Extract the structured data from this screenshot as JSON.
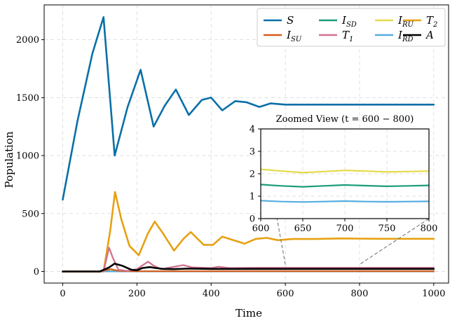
{
  "chart_data": [
    {
      "type": "line",
      "title": "",
      "xlabel": "Time",
      "ylabel": "Population",
      "xlim": [
        -50,
        1040
      ],
      "ylim": [
        -100,
        2300
      ],
      "xticks": [
        0,
        200,
        400,
        600,
        800,
        1000
      ],
      "yticks": [
        0,
        500,
        1000,
        1500,
        2000
      ],
      "grid": true,
      "legend_position": "top-right",
      "series": [
        {
          "name": "S",
          "label": "S",
          "color": "#0a6fa8",
          "x": [
            0,
            40,
            80,
            110,
            140,
            175,
            210,
            245,
            275,
            305,
            340,
            375,
            400,
            430,
            465,
            495,
            530,
            560,
            600,
            640,
            680,
            720,
            760,
            800,
            850,
            900,
            950,
            1000
          ],
          "y": [
            620,
            1300,
            1880,
            2195,
            1000,
            1420,
            1740,
            1250,
            1430,
            1570,
            1350,
            1480,
            1500,
            1390,
            1470,
            1460,
            1420,
            1450,
            1440,
            1440,
            1440,
            1440,
            1440,
            1440,
            1440,
            1440,
            1440,
            1440
          ]
        },
        {
          "name": "I_SU",
          "label": "I",
          "sub": "SU",
          "color": "#d35f1f",
          "x": [
            0,
            100,
            130,
            145,
            170,
            1000
          ],
          "y": [
            0,
            0,
            20,
            8,
            2,
            2
          ]
        },
        {
          "name": "I_SD",
          "label": "I",
          "sub": "SD",
          "color": "#1a9c7b",
          "x": [
            0,
            1000
          ],
          "y": [
            2,
            2
          ]
        },
        {
          "name": "T_1",
          "label": "T",
          "sub": "1",
          "color": "#d0728e",
          "x": [
            0,
            110,
            125,
            135,
            150,
            175,
            200,
            230,
            245,
            265,
            300,
            325,
            350,
            400,
            420,
            450,
            520,
            1000
          ],
          "y": [
            0,
            0,
            205,
            120,
            15,
            5,
            20,
            85,
            50,
            20,
            40,
            55,
            35,
            30,
            40,
            30,
            32,
            32
          ]
        },
        {
          "name": "I_RU",
          "label": "I",
          "sub": "RU",
          "color": "#e6da4a",
          "x": [
            0,
            1000
          ],
          "y": [
            2,
            2
          ]
        },
        {
          "name": "I_RD",
          "label": "I",
          "sub": "RD",
          "color": "#55aee0",
          "x": [
            0,
            1000
          ],
          "y": [
            1,
            1
          ]
        },
        {
          "name": "T_2",
          "label": "T",
          "sub": "2",
          "color": "#e6a112",
          "x": [
            0,
            110,
            128,
            141,
            158,
            180,
            205,
            230,
            248,
            270,
            300,
            325,
            345,
            380,
            405,
            430,
            460,
            490,
            520,
            550,
            580,
            620,
            680,
            750,
            850,
            1000
          ],
          "y": [
            0,
            0,
            350,
            685,
            450,
            220,
            140,
            330,
            430,
            330,
            180,
            280,
            340,
            230,
            230,
            300,
            270,
            240,
            280,
            290,
            270,
            280,
            280,
            285,
            282,
            282
          ]
        },
        {
          "name": "A",
          "label": "A",
          "color": "#000000",
          "x": [
            0,
            100,
            125,
            140,
            160,
            185,
            200,
            215,
            235,
            250,
            270,
            300,
            340,
            400,
            500,
            600,
            1000
          ],
          "y": [
            0,
            0,
            35,
            68,
            50,
            15,
            10,
            30,
            38,
            30,
            22,
            20,
            25,
            22,
            22,
            22,
            22
          ]
        }
      ]
    },
    {
      "type": "line",
      "title": "Zoomed View (t = 600 − 800)",
      "xlim": [
        600,
        800
      ],
      "ylim": [
        0,
        4
      ],
      "xticks": [
        600,
        650,
        700,
        750,
        800
      ],
      "yticks": [
        0,
        1,
        2,
        3,
        4
      ],
      "series": [
        {
          "name": "I_RU",
          "color": "#e6da4a",
          "x": [
            600,
            625,
            650,
            675,
            700,
            725,
            750,
            775,
            800
          ],
          "y": [
            2.2,
            2.12,
            2.05,
            2.1,
            2.15,
            2.12,
            2.08,
            2.1,
            2.12
          ]
        },
        {
          "name": "I_SD",
          "color": "#1a9c7b",
          "x": [
            600,
            625,
            650,
            675,
            700,
            725,
            750,
            775,
            800
          ],
          "y": [
            1.52,
            1.46,
            1.42,
            1.46,
            1.5,
            1.47,
            1.44,
            1.46,
            1.48
          ]
        },
        {
          "name": "I_RD",
          "color": "#55aee0",
          "x": [
            600,
            625,
            650,
            675,
            700,
            725,
            750,
            775,
            800
          ],
          "y": [
            0.8,
            0.76,
            0.74,
            0.76,
            0.78,
            0.76,
            0.75,
            0.76,
            0.77
          ]
        }
      ]
    }
  ]
}
